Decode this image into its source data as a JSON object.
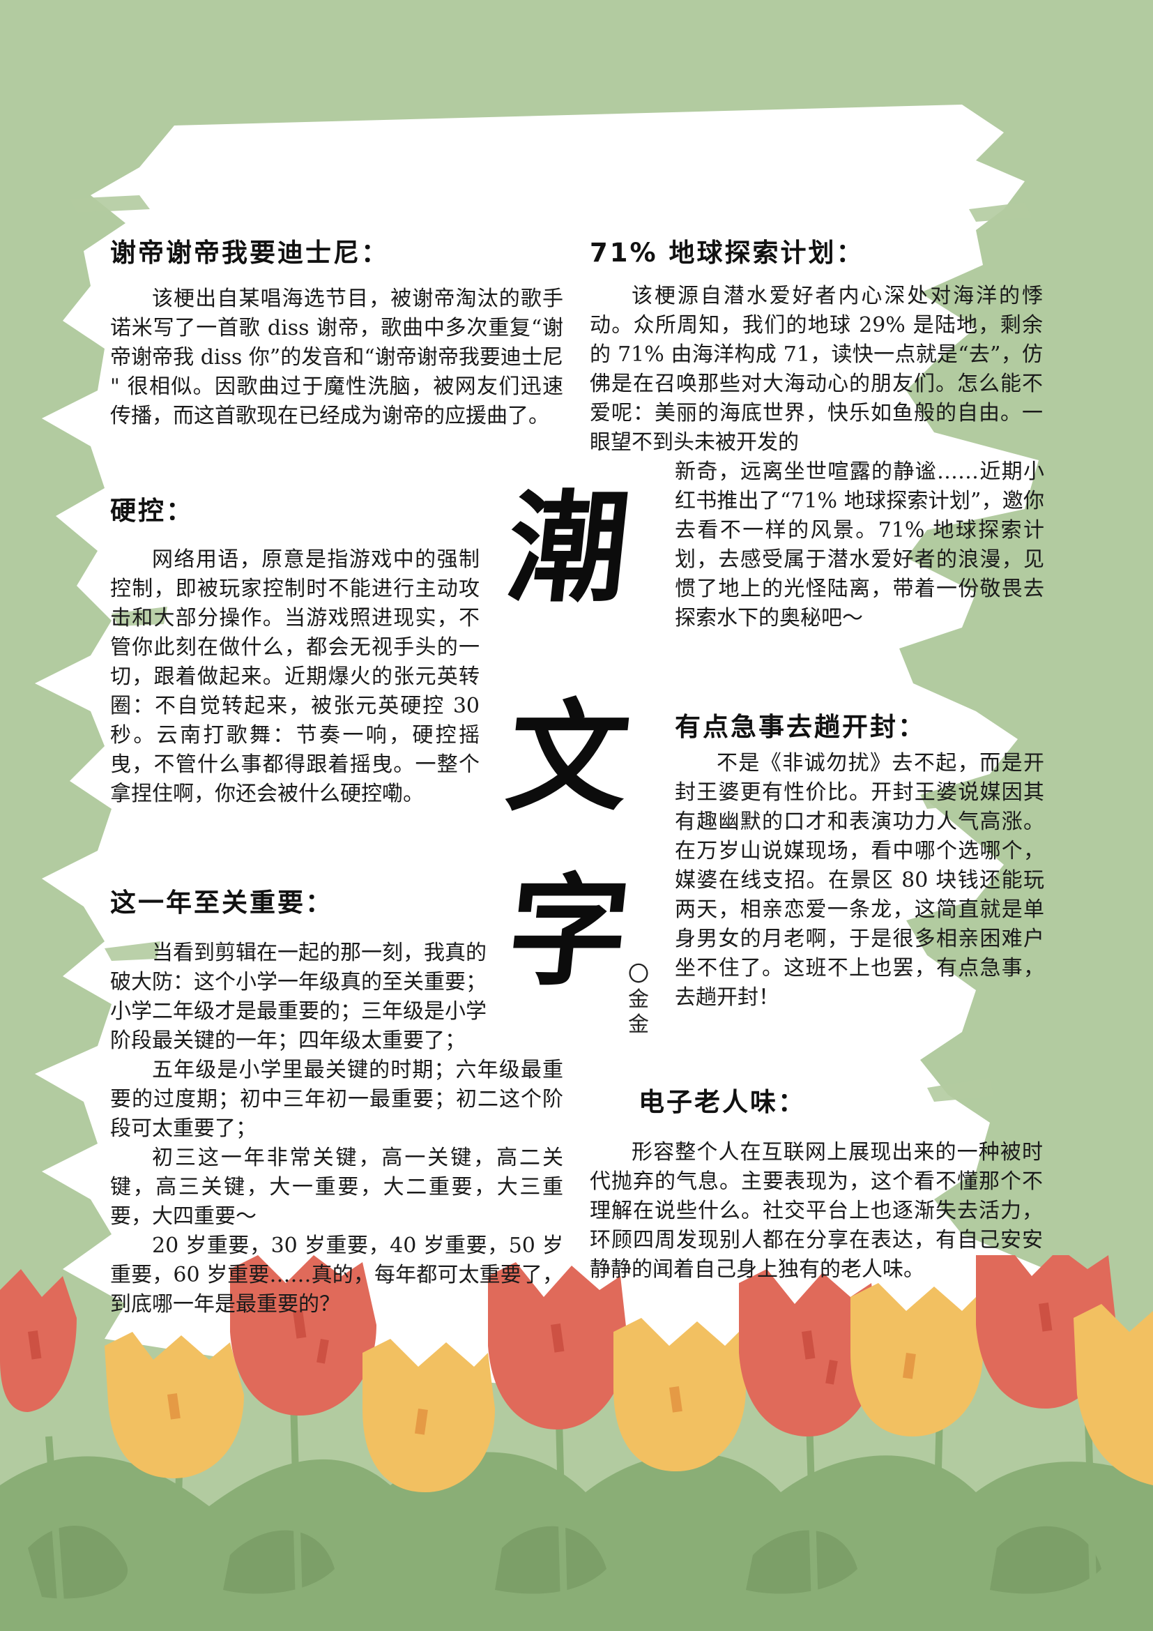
{
  "title": {
    "chars": [
      "潮",
      "文",
      "字"
    ],
    "author_mark": "〇",
    "author": "金金"
  },
  "sections": [
    {
      "heading": "谢帝谢帝我要迪士尼：",
      "paragraphs": [
        "该梗出自某唱海选节目，被谢帝淘汰的歌手诺米写了一首歌 diss 谢帝，歌曲中多次重复“谢帝谢帝我 diss 你”的发音和“谢帝谢帝我要迪士尼 \" 很相似。因歌曲过于魔性洗脑，被网友们迅速传播，而这首歌现在已经成为谢帝的应援曲了。"
      ]
    },
    {
      "heading": "硬控：",
      "paragraphs": [
        "网络用语，原意是指游戏中的强制控制，即被玩家控制时不能进行主动攻击和大部分操作。当游戏照进现实，不管你此刻在做什么，都会无视手头的一切，跟着做起来。近期爆火的张元英转圈：不自觉转起来，被张元英硬控 30 秒。云南打歌舞：节奏一响，硬控摇曳，不管什么事都得跟着摇曳。一整个拿捏住啊，你还会被什么硬控嘞。"
      ]
    },
    {
      "heading": "这一年至关重要：",
      "paragraphs": [
        "当看到剪辑在一起的那一刻，我真的破大防：这个小学一年级真的至关重要；小学二年级才是最重要的；三年级是小学阶段最关键的一年；四年级太重要了；",
        "五年级是小学里最关键的时期；六年级最重要的过度期；初中三年初一最重要；初二这个阶段可太重要了；",
        "初三这一年非常关键，高一关键，高二关键，高三关键，大一重要，大二重要，大三重要，大四重要～",
        "20 岁重要，30 岁重要，40 岁重要，50 岁重要，60 岁重要……真的，每年都可太重要了，到底哪一年是最重要的？"
      ]
    },
    {
      "heading": "71% 地球探索计划：",
      "paragraphs": [
        "该梗源自潜水爱好者内心深处对海洋的悸动。众所周知，我们的地球 29% 是陆地，剩余的 71% 由海洋构成 71，读快一点就是“去”，仿佛是在召唤那些对大海动心的朋友们。怎么能不爱呢：美丽的海底世界，快乐如鱼般的自由。一眼望不到头未被开发的",
        "新奇，远离坐世喧露的静谧……近期小红书推出了“71% 地球探索计划”，邀你去看不一样的风景。71% 地球探索计划，去感受属于潜水爱好者的浪漫，见惯了地上的光怪陆离，带着一份敬畏去探索水下的奥秘吧～"
      ]
    },
    {
      "heading": "有点急事去趟开封：",
      "paragraphs": [
        "不是《非诚勿扰》去不起，而是开封王婆更有性价比。开封王婆说媒因其有趣幽默的口才和表演功力人气高涨。在万岁山说媒现场，看中哪个选哪个，媒婆在线支招。在景区 80 块钱还能玩两天，相亲恋爱一条龙，这简直就是单身男女的月老啊，于是很多相亲困难户坐不住了。这班不上也罢，有点急事，去趟开封！"
      ]
    },
    {
      "heading": "电子老人味：",
      "paragraphs": [
        "形容整个人在互联网上展现出来的一种被时代抛弃的气息。主要表现为，这个看不懂那个不理解在说些什么。社交平台上也逐渐失去活力，环顾四周发现别人都在分享在表达，有自己安安静静的闻着自己身上独有的老人味。"
      ]
    }
  ],
  "colors": {
    "background": "#b2cba0",
    "paper": "#ffffff",
    "tulip_red": "#e06a5a",
    "tulip_yellow": "#f2c061",
    "leaf": "#8aae76"
  }
}
